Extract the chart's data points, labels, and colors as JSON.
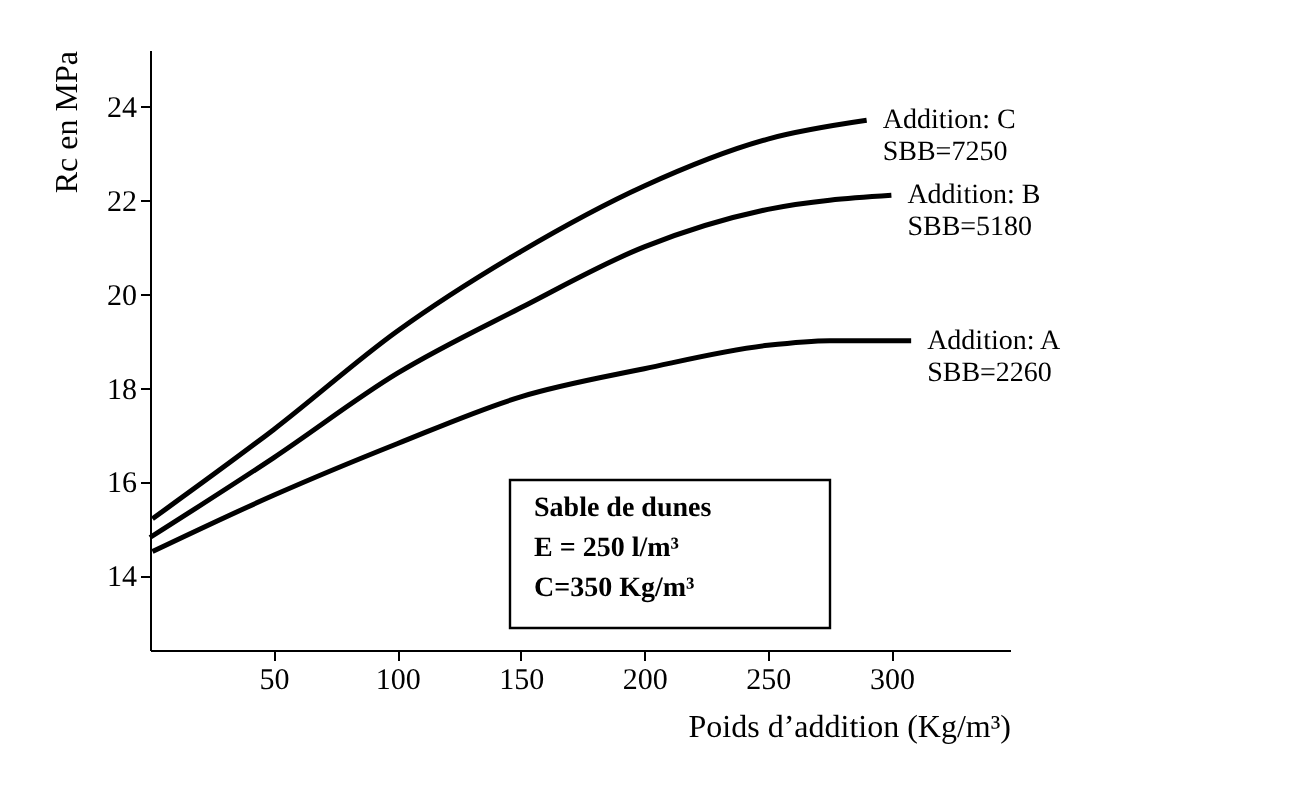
{
  "chart_data": {
    "type": "line",
    "xlabel": "Poids d’addition (Kg/m³)",
    "ylabel": "Rc en MPa",
    "series": [
      {
        "name": "Addition: C\nSBB=7250",
        "color": "#000000",
        "x": [
          1,
          50,
          100,
          150,
          200,
          250,
          290
        ],
        "values": [
          15.2,
          17.1,
          19.2,
          20.9,
          22.3,
          23.3,
          23.7
        ]
      },
      {
        "name": "Addition: B\nSBB=5180",
        "color": "#000000",
        "x": [
          0,
          50,
          100,
          150,
          200,
          250,
          300
        ],
        "values": [
          14.8,
          16.5,
          18.3,
          19.7,
          21.0,
          21.8,
          22.1
        ]
      },
      {
        "name": "Addition: A\nSBB=2260",
        "color": "#000000",
        "x": [
          1,
          50,
          100,
          150,
          200,
          250,
          275,
          308
        ],
        "values": [
          14.5,
          15.7,
          16.8,
          17.8,
          18.4,
          18.9,
          19.0,
          19.0
        ]
      }
    ],
    "annotations": [
      "Sable de dunes\nE = 250 l/m³\nC=350 Kg/m³"
    ],
    "xlim": [
      0,
      348
    ],
    "ylim": [
      12.4,
      25.2
    ],
    "xticks": [
      50,
      100,
      150,
      200,
      250,
      300
    ],
    "yticks": [
      14,
      16,
      18,
      20,
      22,
      24
    ],
    "grid": false,
    "legend": false,
    "marker": "none",
    "line_style": "solid"
  }
}
